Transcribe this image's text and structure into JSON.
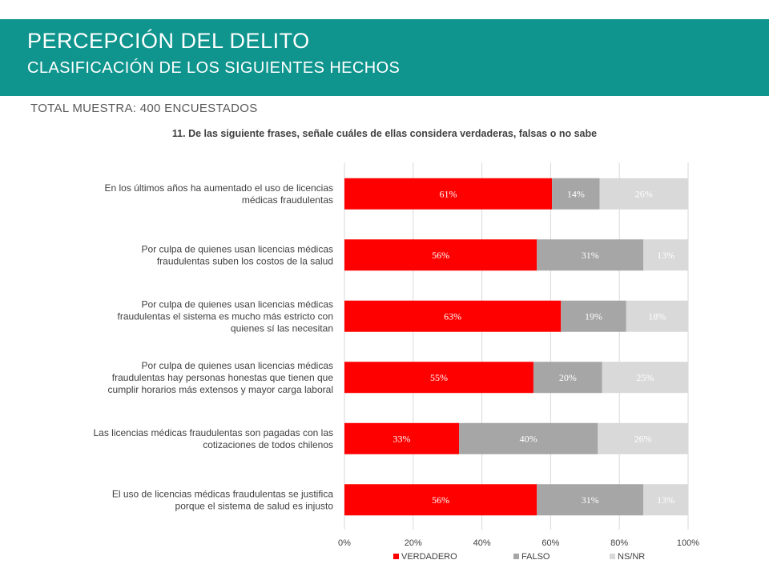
{
  "header": {
    "title": "PERCEPCIÓN DEL DELITO",
    "subtitle": "CLASIFICACIÓN DE LOS SIGUIENTES HECHOS"
  },
  "sample_text": "TOTAL MUESTRA: 400 ENCUESTADOS",
  "colors": {
    "header_bg": "#0f958e",
    "verdadero": "#ff0000",
    "falso": "#a6a6a6",
    "nsnr": "#d9d9d9"
  },
  "chart_data": {
    "type": "bar",
    "orientation": "horizontal-stacked-100",
    "title": "11. De las siguiente frases, señale cuáles de ellas considera verdaderas, falsas o no sabe",
    "categories": [
      [
        "En los últimos años ha aumentado el uso de licencias",
        "médicas fraudulentas"
      ],
      [
        "Por culpa de quienes usan licencias médicas",
        "fraudulentas suben los costos de la salud"
      ],
      [
        "Por culpa de quienes usan licencias médicas",
        "fraudulentas el sistema es mucho más estricto con",
        "quienes sí las necesitan"
      ],
      [
        "Por culpa de quienes usan licencias médicas",
        "fraudulentas hay personas honestas que tienen que",
        "cumplir horarios más extensos y mayor carga laboral"
      ],
      [
        "Las licencias médicas fraudulentas son pagadas con las",
        "cotizaciones de todos chilenos"
      ],
      [
        "El uso de licencias médicas fraudulentas se justifica",
        "porque el sistema de salud es injusto"
      ]
    ],
    "series": [
      {
        "name": "VERDADERO",
        "values": [
          61,
          56,
          63,
          55,
          33,
          56
        ],
        "labels": [
          "61%",
          "56%",
          "63%",
          "55%",
          "33%",
          "56%"
        ]
      },
      {
        "name": "FALSO",
        "values": [
          14,
          31,
          19,
          20,
          40,
          31
        ],
        "labels": [
          "14%",
          "31%",
          "19%",
          "20%",
          "40%",
          "31%"
        ]
      },
      {
        "name": "NS/NR",
        "values": [
          26,
          13,
          18,
          25,
          26,
          13
        ],
        "labels": [
          "26%",
          "13%",
          "18%",
          "25%",
          "26%",
          "13%"
        ]
      }
    ],
    "xlim": [
      0,
      100
    ],
    "xticks": [
      "0%",
      "20%",
      "40%",
      "60%",
      "80%",
      "100%"
    ],
    "grid": true,
    "legend_position": "bottom"
  }
}
